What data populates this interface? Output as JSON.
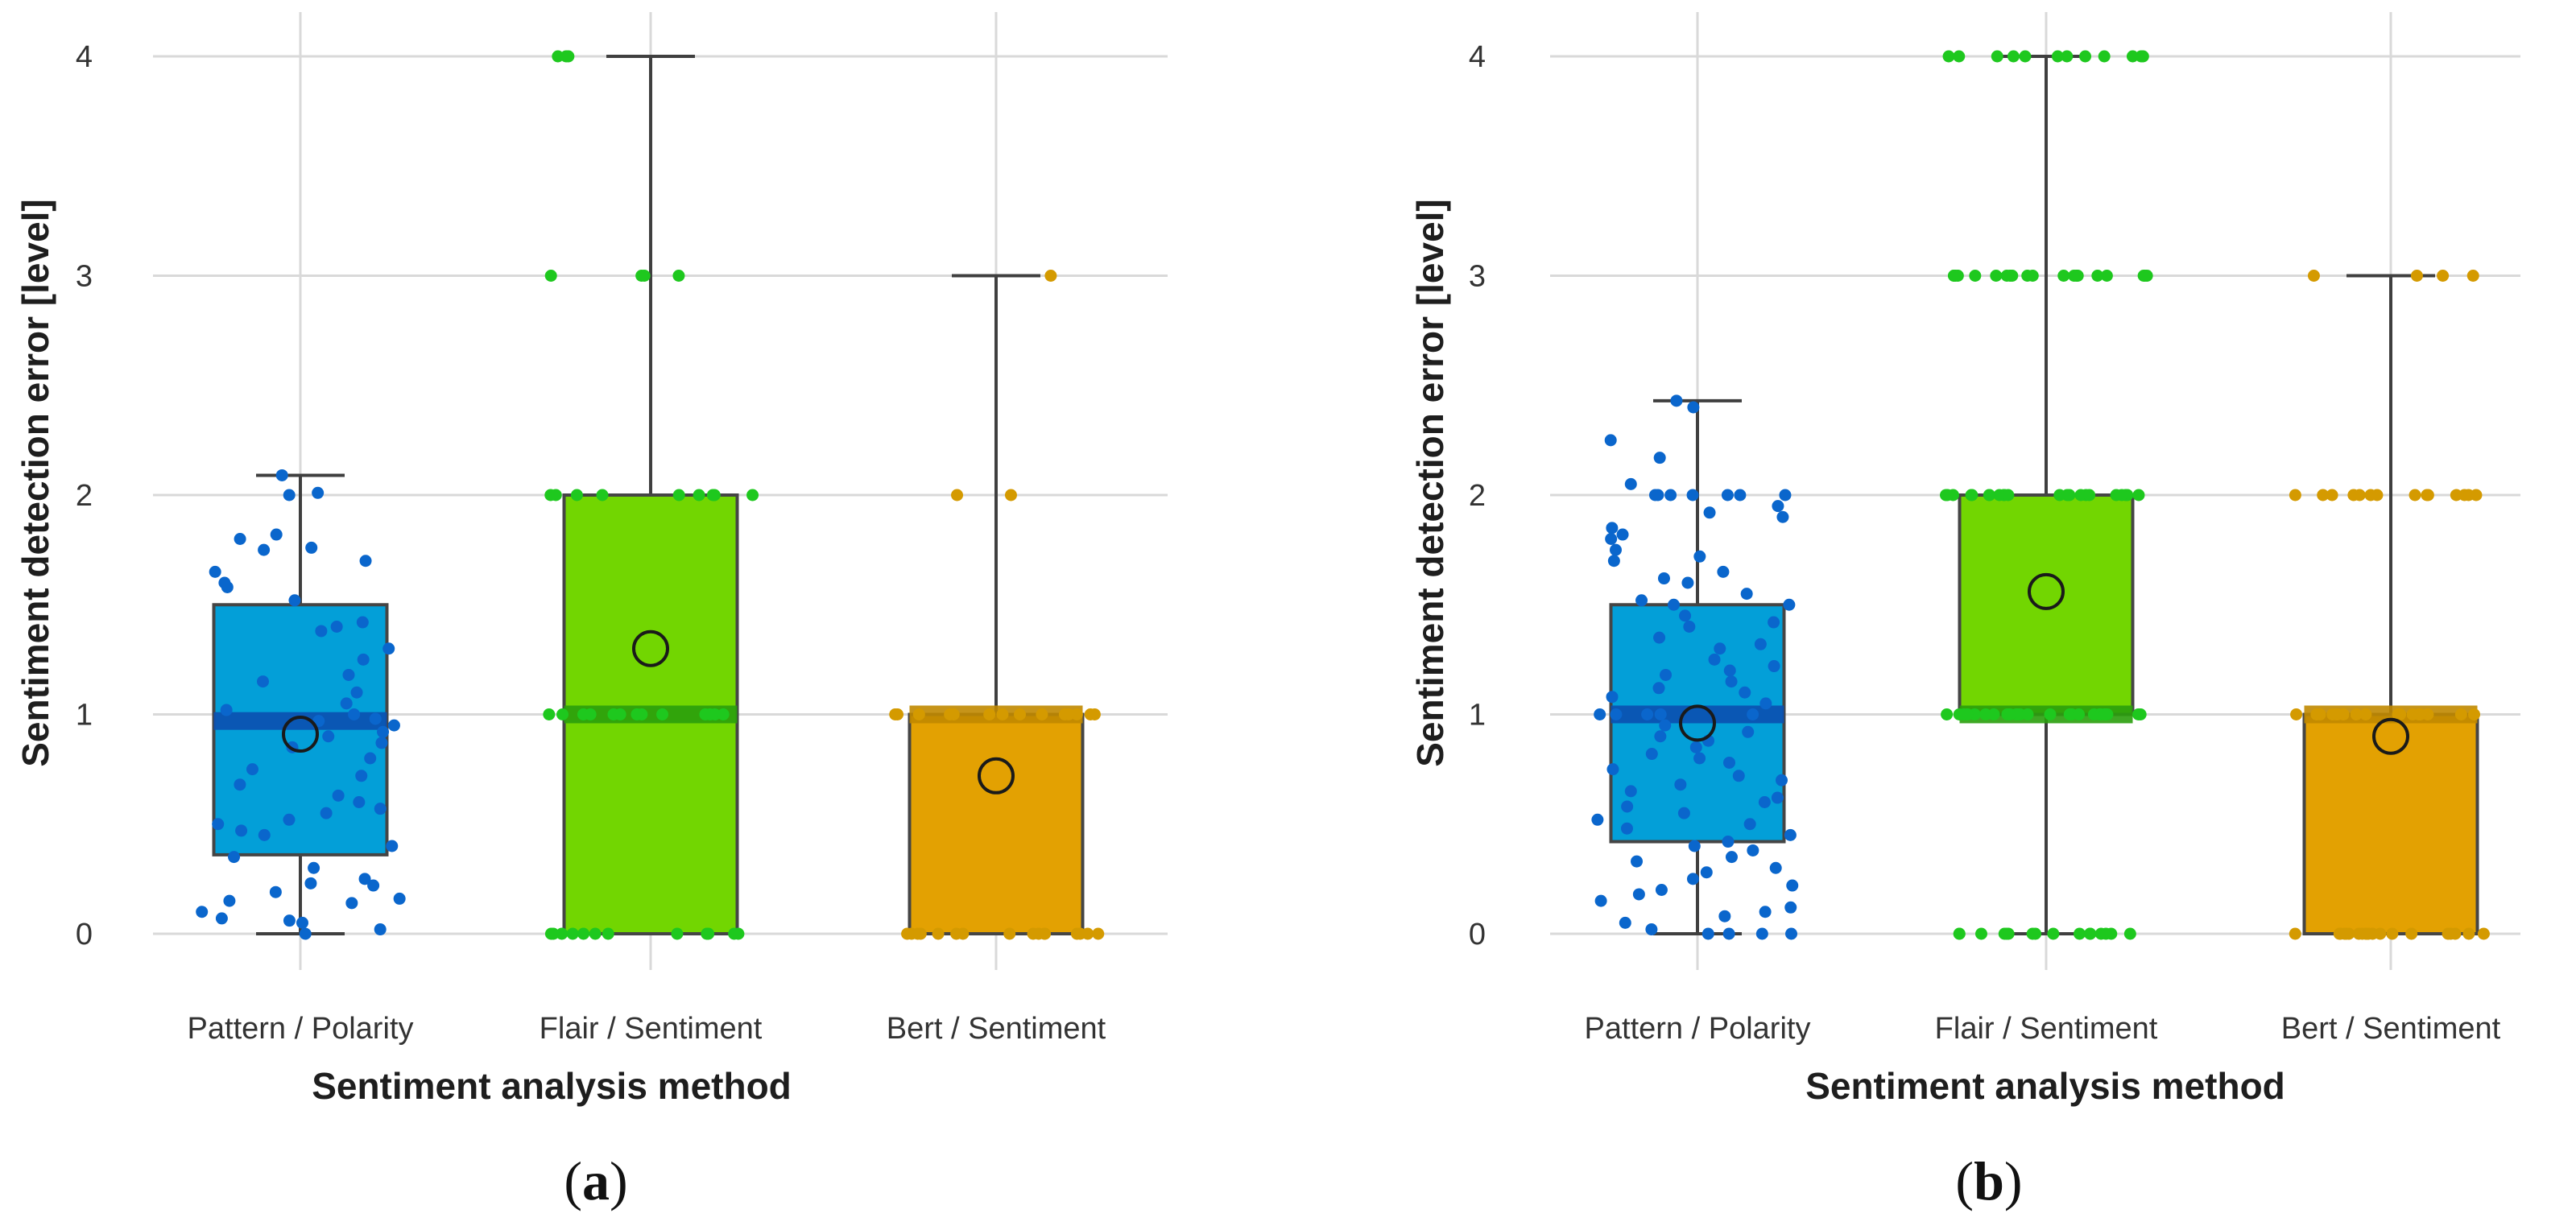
{
  "figure": {
    "panel_labels": [
      "(a)",
      "(b)"
    ]
  },
  "chart_data": [
    {
      "type": "box",
      "panel": "(a)",
      "xlabel": "Sentiment analysis method",
      "ylabel": "Sentiment detection error [level]",
      "ylim": [
        -0.3,
        4.2
      ],
      "yticks": [
        0,
        1,
        2,
        3,
        4
      ],
      "grid": true,
      "categories": [
        "Pattern / Polarity",
        "Flair / Sentiment",
        "Bert / Sentiment"
      ],
      "colors": {
        "box": [
          "#039fd8",
          "#72d601",
          "#e3a102"
        ],
        "points": [
          "#0a66cc",
          "#1ec81e",
          "#d49a00"
        ],
        "median": [
          "#0b4fb0",
          "#2a9f0c",
          "#c08800"
        ]
      },
      "boxes": [
        {
          "whisker_low": 0,
          "q1": 0.36,
          "median": 0.97,
          "q3": 1.5,
          "whisker_high": 2.09,
          "mean": 0.91
        },
        {
          "whisker_low": 0,
          "q1": 0,
          "median": 1.0,
          "q3": 2.0,
          "whisker_high": 4.0,
          "mean": 1.3
        },
        {
          "whisker_low": 0,
          "q1": 0,
          "median": 1.0,
          "q3": 1.0,
          "whisker_high": 3.0,
          "mean": 0.72
        }
      ],
      "points": [
        [
          2.09,
          0.02,
          0.0,
          0.25,
          0.23,
          0.19,
          0.1,
          0.15,
          0.16,
          0.06,
          0.07,
          0.14,
          0.05,
          0.22,
          0.5,
          0.55,
          0.6,
          0.52,
          0.47,
          0.45,
          0.68,
          0.63,
          0.57,
          0.72,
          0.85,
          0.87,
          0.9,
          0.95,
          1.0,
          1.02,
          0.97,
          0.92,
          1.05,
          1.1,
          1.18,
          1.25,
          1.3,
          1.4,
          1.42,
          1.52,
          1.58,
          1.6,
          1.7,
          1.76,
          1.8,
          1.82,
          1.75,
          2.0,
          2.01,
          0.98,
          0.75,
          0.8,
          1.38,
          1.65,
          0.3,
          0.4,
          1.15,
          0.35
        ],
        [
          4,
          4,
          4,
          3,
          3,
          3,
          3,
          2,
          2,
          2,
          2,
          2,
          2,
          2,
          2,
          2,
          1,
          1,
          1,
          1,
          1,
          1,
          1,
          1,
          1,
          1,
          1,
          1,
          1,
          0,
          0,
          0,
          0,
          0,
          0,
          0,
          0,
          0,
          0,
          0,
          0
        ],
        [
          3,
          2,
          2,
          1,
          1,
          1,
          1,
          1,
          1,
          1,
          1,
          1,
          1,
          1,
          1,
          1,
          1,
          0,
          0,
          0,
          0,
          0,
          0,
          0,
          0,
          0,
          0,
          0,
          0,
          0,
          0,
          0,
          0
        ]
      ]
    },
    {
      "type": "box",
      "panel": "(b)",
      "xlabel": "Sentiment analysis method",
      "ylabel": "Sentiment detection error [level]",
      "ylim": [
        -0.3,
        4.2
      ],
      "yticks": [
        0,
        1,
        2,
        3,
        4
      ],
      "grid": true,
      "categories": [
        "Pattern / Polarity",
        "Flair / Sentiment",
        "Bert / Sentiment"
      ],
      "colors": {
        "box": [
          "#039fd8",
          "#72d601",
          "#e3a102"
        ],
        "points": [
          "#0a66cc",
          "#1ec81e",
          "#d49a00"
        ],
        "median": [
          "#0b4fb0",
          "#2a9f0c",
          "#c08800"
        ]
      },
      "boxes": [
        {
          "whisker_low": 0,
          "q1": 0.42,
          "median": 1.0,
          "q3": 1.5,
          "whisker_high": 2.43,
          "mean": 0.96
        },
        {
          "whisker_low": 0,
          "q1": 1.0,
          "median": 1.0,
          "q3": 2.0,
          "whisker_high": 4.0,
          "mean": 1.56
        },
        {
          "whisker_low": 0,
          "q1": 0,
          "median": 1.0,
          "q3": 1.0,
          "whisker_high": 3.0,
          "mean": 0.9
        }
      ],
      "points": [
        [
          2.43,
          2.4,
          2.25,
          2.17,
          2.05,
          2.0,
          2.0,
          2.0,
          2.0,
          2.0,
          2.0,
          2.0,
          1.95,
          1.9,
          1.85,
          1.8,
          1.75,
          1.7,
          1.65,
          1.6,
          1.55,
          1.5,
          1.5,
          1.45,
          1.4,
          1.35,
          1.3,
          1.25,
          1.2,
          1.15,
          1.1,
          1.05,
          1.0,
          1.0,
          1.0,
          1.0,
          1.0,
          0.95,
          0.9,
          0.85,
          0.8,
          0.75,
          0.7,
          0.65,
          0.6,
          0.55,
          0.5,
          0.45,
          0.4,
          0.35,
          0.3,
          0.25,
          0.2,
          0.15,
          0.1,
          0.05,
          0.0,
          0.0,
          0.0,
          0.0,
          0.02,
          0.12,
          0.22,
          0.33,
          0.38,
          0.48,
          0.58,
          0.68,
          0.78,
          0.88,
          1.12,
          1.22,
          1.32,
          1.42,
          1.52,
          1.62,
          1.72,
          1.82,
          1.92,
          0.42,
          0.52,
          0.62,
          0.72,
          0.82,
          0.92,
          1.08,
          1.18,
          0.28,
          0.18,
          0.08
        ],
        [
          4,
          4,
          4,
          4,
          4,
          4,
          4,
          4,
          4,
          4,
          4,
          4,
          3,
          3,
          3,
          3,
          3,
          3,
          3,
          3,
          3,
          3,
          3,
          3,
          3,
          3,
          3,
          3,
          3,
          3,
          3,
          3,
          2,
          2,
          2,
          2,
          2,
          2,
          2,
          2,
          2,
          2,
          2,
          2,
          2,
          2,
          2,
          2,
          2,
          2,
          2,
          2,
          2,
          2,
          1,
          1,
          1,
          1,
          1,
          1,
          1,
          1,
          1,
          1,
          1,
          1,
          1,
          1,
          1,
          1,
          1,
          1,
          1,
          1,
          1,
          1,
          1,
          1,
          1,
          1,
          0,
          0,
          0,
          0,
          0,
          0,
          0,
          0,
          0,
          0,
          0,
          0,
          0,
          0,
          0,
          0
        ],
        [
          3,
          3,
          3,
          3,
          2,
          2,
          2,
          2,
          2,
          2,
          2,
          2,
          2,
          2,
          2,
          2,
          2,
          2,
          1,
          1,
          1,
          1,
          1,
          1,
          1,
          1,
          1,
          1,
          1,
          1,
          1,
          1,
          1,
          1,
          1,
          0,
          0,
          0,
          0,
          0,
          0,
          0,
          0,
          0,
          0,
          0,
          0,
          0,
          0,
          0,
          0,
          0,
          0,
          0,
          0
        ]
      ]
    }
  ]
}
